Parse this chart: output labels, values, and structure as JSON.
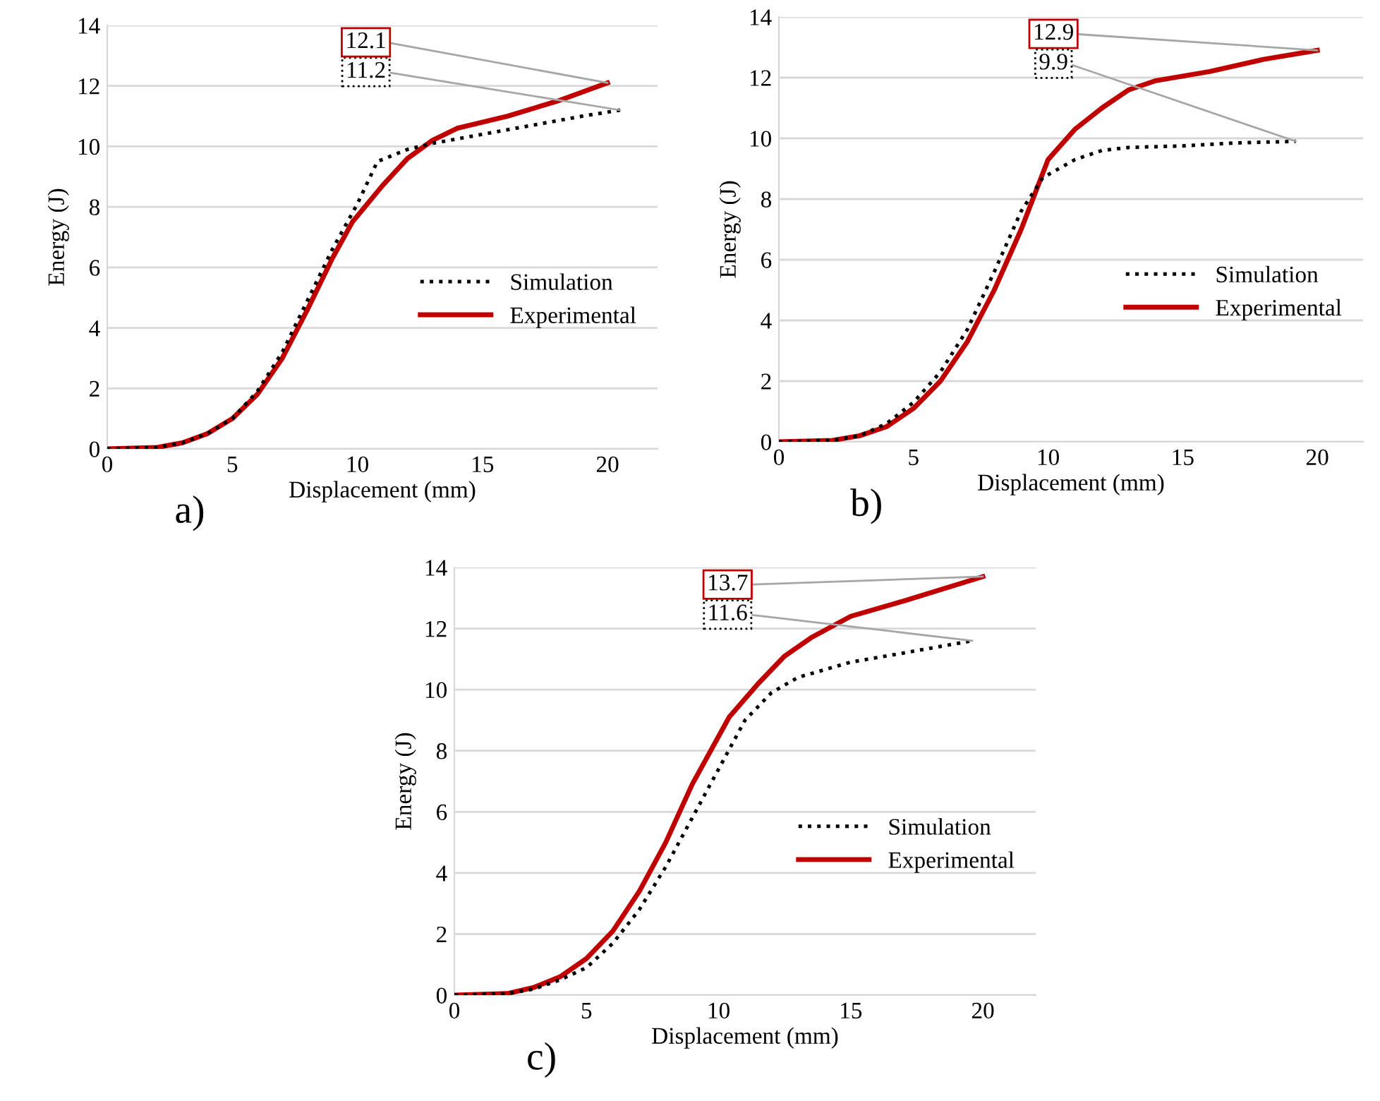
{
  "chart_data": [
    {
      "type": "line",
      "xlabel": "Displacement (mm)",
      "ylabel": "Energy (J)",
      "xlim": [
        0,
        22
      ],
      "xticks": [
        0,
        5,
        10,
        15,
        20
      ],
      "ylim": [
        0,
        14
      ],
      "yticks": [
        0,
        2,
        4,
        6,
        8,
        10,
        12,
        14
      ],
      "grid": "y",
      "legend": "right",
      "marker": "none",
      "series": [
        {
          "name": "Simulation",
          "color": "#000000",
          "line_style": "dotted",
          "x": [
            0,
            2,
            3,
            4,
            5,
            6,
            7,
            8,
            9,
            10,
            10.8,
            12,
            13,
            15,
            17,
            19,
            20.5
          ],
          "values": [
            0,
            0.05,
            0.2,
            0.5,
            1.0,
            1.9,
            3.2,
            4.9,
            6.6,
            8.1,
            9.5,
            9.9,
            10.1,
            10.4,
            10.7,
            11.0,
            11.2
          ]
        },
        {
          "name": "Experimental",
          "color": "#c00000",
          "line_style": "solid",
          "x": [
            0,
            2,
            3,
            4,
            5,
            6,
            7,
            8,
            9,
            9.8,
            11,
            12,
            13,
            14,
            16,
            18,
            20
          ],
          "values": [
            0,
            0.05,
            0.2,
            0.5,
            1.0,
            1.8,
            3.0,
            4.6,
            6.3,
            7.5,
            8.7,
            9.6,
            10.2,
            10.6,
            11.0,
            11.5,
            12.1
          ]
        }
      ],
      "annotations": [
        {
          "text": "11.2",
          "x": 20.5,
          "y": 11.2
        },
        {
          "text": "12.1",
          "x": 20,
          "y": 12.1
        },
        "a)"
      ]
    },
    {
      "type": "line",
      "xlabel": "Displacement (mm)",
      "ylabel": "Energy (J)",
      "xlim": [
        0,
        21.7
      ],
      "xticks": [
        0,
        5,
        10,
        15,
        20
      ],
      "ylim": [
        0,
        14
      ],
      "yticks": [
        0,
        2,
        4,
        6,
        8,
        10,
        12,
        14
      ],
      "grid": "y",
      "legend": "right",
      "marker": "none",
      "series": [
        {
          "name": "Simulation",
          "color": "#000000",
          "line_style": "dotted",
          "x": [
            0,
            2,
            3,
            4,
            5,
            6,
            7,
            8,
            9,
            9.8,
            11,
            12,
            13,
            15,
            17,
            19.2
          ],
          "values": [
            0,
            0.05,
            0.2,
            0.6,
            1.3,
            2.3,
            3.7,
            5.6,
            7.6,
            8.7,
            9.3,
            9.6,
            9.7,
            9.75,
            9.85,
            9.9
          ]
        },
        {
          "name": "Experimental",
          "color": "#c00000",
          "line_style": "solid",
          "x": [
            0,
            2,
            3,
            4,
            5,
            6,
            7,
            8,
            9,
            10,
            11,
            12,
            13,
            14,
            16,
            18,
            20
          ],
          "values": [
            0,
            0.05,
            0.2,
            0.5,
            1.1,
            2.0,
            3.3,
            5.0,
            7.0,
            9.3,
            10.3,
            11.0,
            11.6,
            11.9,
            12.2,
            12.6,
            12.9
          ]
        }
      ],
      "annotations": [
        {
          "text": "9.9",
          "x": 19.2,
          "y": 9.9
        },
        {
          "text": "12.9",
          "x": 20,
          "y": 12.9
        },
        "b)"
      ]
    },
    {
      "type": "line",
      "xlabel": "Displacement (mm)",
      "ylabel": "Energy (J)",
      "xlim": [
        0,
        22
      ],
      "xticks": [
        0,
        5,
        10,
        15,
        20
      ],
      "ylim": [
        0,
        14
      ],
      "yticks": [
        0,
        2,
        4,
        6,
        8,
        10,
        12,
        14
      ],
      "grid": "y",
      "legend": "right",
      "marker": "none",
      "series": [
        {
          "name": "Simulation",
          "color": "#000000",
          "line_style": "dotted",
          "x": [
            0,
            2,
            3,
            4,
            5,
            6,
            7,
            8,
            9,
            10,
            11,
            12,
            13,
            15,
            17,
            19.6
          ],
          "values": [
            0,
            0.05,
            0.2,
            0.5,
            0.9,
            1.7,
            2.8,
            4.2,
            5.8,
            7.4,
            9.0,
            9.9,
            10.4,
            10.9,
            11.2,
            11.6
          ]
        },
        {
          "name": "Experimental",
          "color": "#c00000",
          "line_style": "solid",
          "x": [
            0,
            2,
            3,
            4,
            5,
            6,
            7,
            8,
            9,
            10.4,
            11.5,
            12.5,
            13.5,
            15,
            17,
            20
          ],
          "values": [
            0,
            0.05,
            0.25,
            0.6,
            1.2,
            2.1,
            3.4,
            5.0,
            6.9,
            9.1,
            10.2,
            11.1,
            11.7,
            12.4,
            12.9,
            13.7
          ]
        }
      ],
      "annotations": [
        {
          "text": "11.6",
          "x": 19.6,
          "y": 11.6
        },
        {
          "text": "13.7",
          "x": 20,
          "y": 13.7
        },
        "c)"
      ]
    }
  ]
}
